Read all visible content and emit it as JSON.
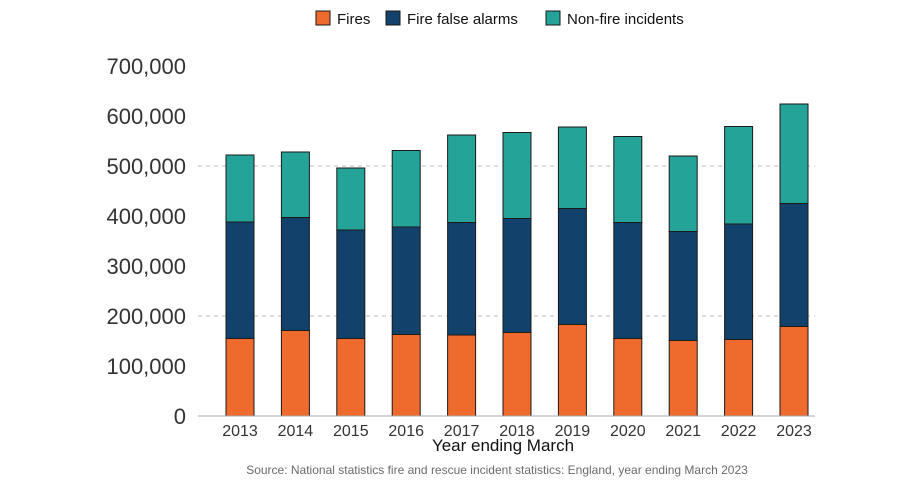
{
  "chart_data": {
    "type": "bar",
    "stacked": true,
    "categories": [
      "2013",
      "2014",
      "2015",
      "2016",
      "2017",
      "2018",
      "2019",
      "2020",
      "2021",
      "2022",
      "2023"
    ],
    "series": [
      {
        "name": "Fires",
        "color": "#ee6b2d",
        "values": [
          155000,
          171000,
          155000,
          163000,
          162000,
          167000,
          183000,
          155000,
          151000,
          153000,
          179000
        ]
      },
      {
        "name": "Fire false alarms",
        "color": "#12416b",
        "values": [
          233000,
          226000,
          217000,
          215000,
          225000,
          228000,
          232000,
          232000,
          218000,
          231000,
          246000
        ]
      },
      {
        "name": "Non-fire incidents",
        "color": "#24a399",
        "values": [
          134000,
          131000,
          124000,
          153000,
          175000,
          172000,
          163000,
          172000,
          151000,
          195000,
          199000
        ]
      }
    ],
    "xlabel": "Year ending March",
    "ylabel": "",
    "ylim": [
      0,
      700000
    ],
    "yticks": [
      "0",
      "100,000",
      "200,000",
      "300,000",
      "400,000",
      "500,000",
      "600,000",
      "700,000"
    ],
    "gridlines_at": [
      200000,
      500000
    ],
    "grid": "dashed",
    "legend_position": "top"
  },
  "source": "Source: National statistics fire and rescue incident statistics: England, year ending March 2023"
}
